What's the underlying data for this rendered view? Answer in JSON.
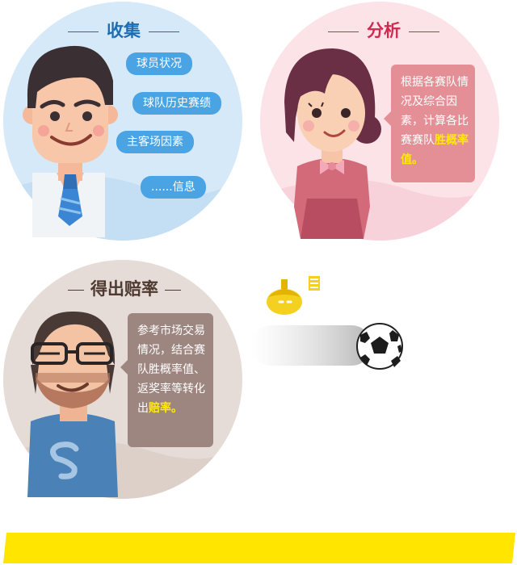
{
  "sections": {
    "collect": {
      "title": "收集",
      "items": [
        "球员状况",
        "球队历史赛绩",
        "主客场因素",
        "......信息"
      ]
    },
    "analyze": {
      "title": "分析",
      "text": "根据各赛队情况及综合因素，计算各比赛赛队",
      "highlight": "胜概率值。"
    },
    "odds": {
      "title": "得出赔率",
      "text": "参考市场交易情况，结合赛队胜概率值、返奖率等转化出",
      "highlight": "赔率。"
    }
  },
  "colors": {
    "collect_bg": "#d6e9f8",
    "analyze_bg": "#fbe3e7",
    "odds_bg": "#e6dcd7",
    "pill_blue": "#4aa3e3",
    "highlight": "#ffea00",
    "bar_yellow": "#ffe500"
  },
  "icons": [
    "man-character-icon",
    "woman-character-icon",
    "bearded-man-character-icon",
    "acorn-bag-icon",
    "soccer-ball-icon"
  ]
}
